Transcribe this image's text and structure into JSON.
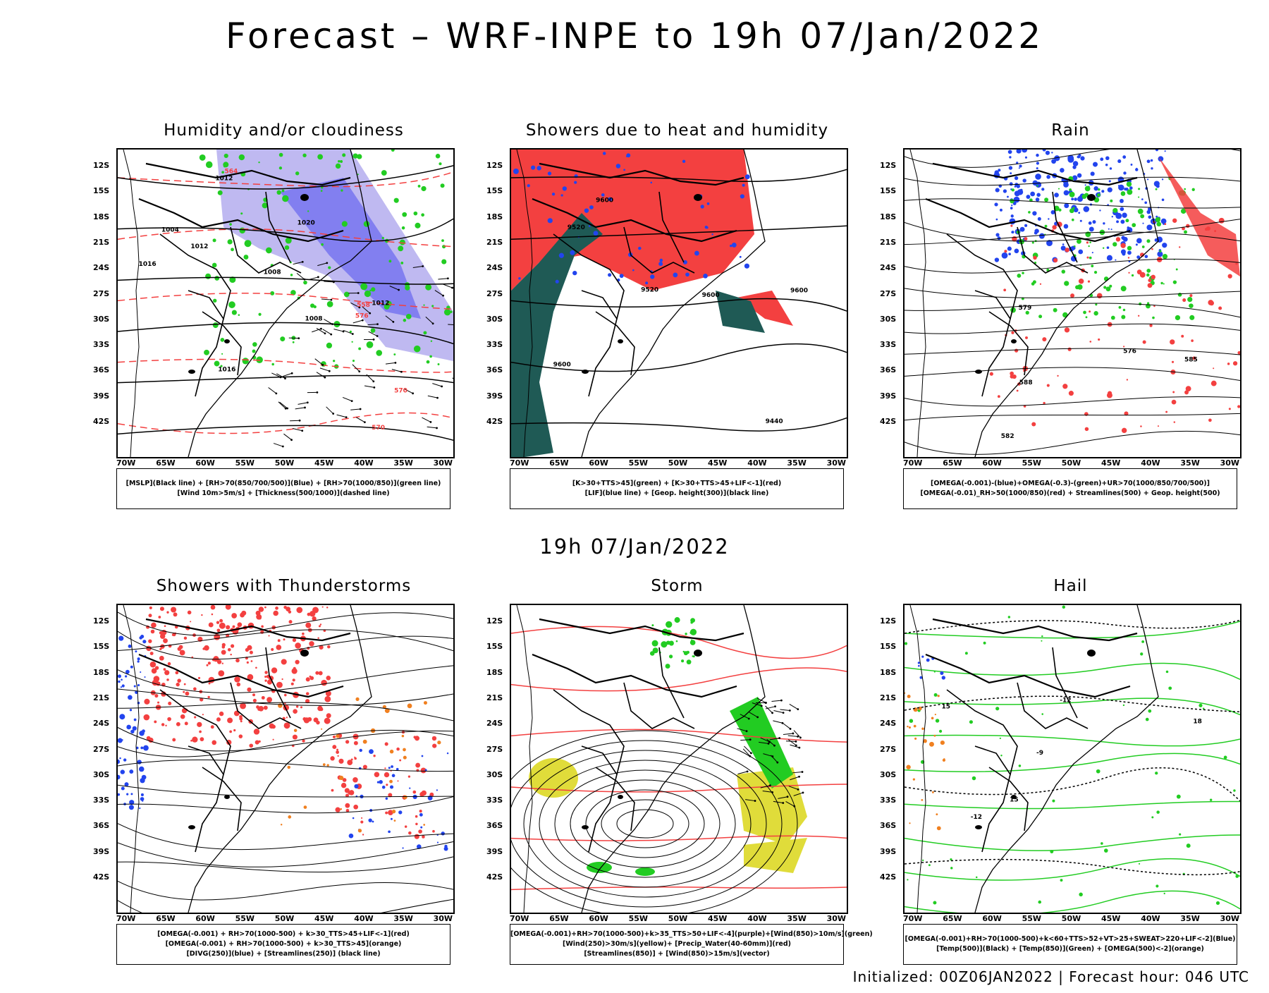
{
  "header": {
    "title": "Forecast – WRF-INPE to 19h 07/Jan/2022"
  },
  "middle_title": "19h 07/Jan/2022",
  "footer": {
    "text": "Initialized: 00Z06JAN2022 | Forecast hour: 046 UTC"
  },
  "axes": {
    "lat_labels": [
      "12S",
      "15S",
      "18S",
      "21S",
      "24S",
      "27S",
      "30S",
      "33S",
      "36S",
      "39S",
      "42S"
    ],
    "lon_labels": [
      "70W",
      "65W",
      "60W",
      "55W",
      "50W",
      "45W",
      "40W",
      "35W",
      "30W"
    ]
  },
  "colors": {
    "red": "#f34040",
    "green": "#22cc22",
    "blue": "#2244ee",
    "purple": "#8a80e6",
    "dark_green": "#1f5a55",
    "yellow": "#e0dc3a",
    "orange": "#f08020"
  },
  "panels": [
    {
      "title": "Humidity and/or cloudiness",
      "legend": [
        "[MSLP](Black line) + [RH>70(850/700/500)](Blue) + [RH>70(1000/850)](green line)",
        "[Wind 10m>5m/s] + [Thickness(500/1000)](dashed line)"
      ],
      "labels": [
        "1012",
        "1004",
        "1008",
        "1012",
        "1016",
        "1020",
        "1016",
        "1008",
        "570",
        "576",
        "564",
        "558",
        "570",
        "1012"
      ]
    },
    {
      "title": "Showers due to heat and humidity",
      "legend": [
        "[K>30+TTS>45](green) + [K>30+TTS>45+LIF<-1](red)",
        "[LIF](blue line) + [Geop. height(300)](black line)"
      ],
      "labels": [
        "9600",
        "9600",
        "9520",
        "9440",
        "9600",
        "9520",
        "9600"
      ]
    },
    {
      "title": "Rain",
      "legend": [
        "[OMEGA(-0.001)-(blue)+OMEGA(-0.3)-(green)+UR>70(1000/850/700/500)]",
        "[OMEGA(-0.01)_RH>50(1000/850)(red) + Streamlines(500) + Geop. height(500)"
      ],
      "labels": [
        "582",
        "576",
        "579",
        "588",
        "585"
      ]
    },
    {
      "title": "Showers with Thunderstorms",
      "legend": [
        "[OMEGA(-0.001) + RH>70(1000-500) + k>30_TTS>45+LIF<-1](red)",
        "[OMEGA(-0.001) + RH>70(1000-500) + k>30_TTS>45](orange)",
        "[DIVG(250)](blue) + [Streamlines(250)] (black line)"
      ],
      "labels": []
    },
    {
      "title": "Storm",
      "legend": [
        "[OMEGA(-0.001)+RH>70(1000-500)+k>35_TTS>50+LIF<-4](purple)+[Wind(850)>10m/s](green)",
        "[Wind(250)>30m/s](yellow)+ [Precip_Water(40-60mm)](red)",
        "[Streamlines(850)] + [Wind(850)>15m/s](vector)"
      ],
      "labels": []
    },
    {
      "title": "Hail",
      "legend": [
        "[OMEGA(-0.001)+RH>70(1000-500)+k<60+TTS>52+VT>25+SWEAT>220+LIF<-2](Blue)",
        "[Temp(500)](Black) + [Temp(850)](Green) + [OMEGA(500)<-2](orange)"
      ],
      "labels": [
        "-9",
        "15",
        "-12",
        "18",
        "15",
        "-12"
      ]
    }
  ]
}
